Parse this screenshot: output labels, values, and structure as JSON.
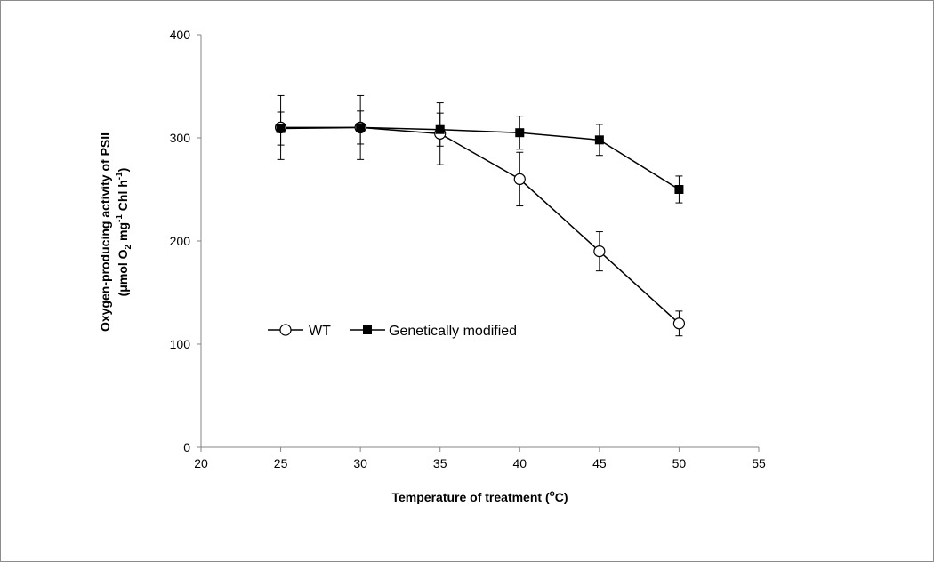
{
  "chart_data": {
    "type": "line",
    "xlabel": "Temperature of treatment (",
    "xlabel_sup": "o",
    "xlabel_tail": "C)",
    "ylabel_line1": "Oxygen-producing activity of PSII",
    "ylabel_line2": {
      "p1": "(μmol O",
      "sub": "2",
      "p2": " mg",
      "sup1": "-1",
      "p3": " Chl h",
      "sup2": "-1",
      "p4": ")"
    },
    "xlim": [
      20,
      55
    ],
    "ylim": [
      0,
      400
    ],
    "xticks": [
      20,
      25,
      30,
      35,
      40,
      45,
      50,
      55
    ],
    "yticks": [
      0,
      100,
      200,
      300,
      400
    ],
    "grid": false,
    "legend_position": "center-left",
    "series": [
      {
        "name": "WT",
        "marker": "open-circle",
        "x": [
          25,
          30,
          35,
          40,
          45,
          50
        ],
        "y": [
          310,
          310,
          304,
          260,
          190,
          120
        ],
        "err": [
          31,
          31,
          30,
          26,
          19,
          12
        ]
      },
      {
        "name": "Genetically modified",
        "marker": "filled-square",
        "x": [
          25,
          30,
          35,
          40,
          45,
          50
        ],
        "y": [
          309,
          310,
          308,
          305,
          298,
          250
        ],
        "err": [
          16,
          16,
          16,
          16,
          15,
          13
        ]
      }
    ]
  }
}
